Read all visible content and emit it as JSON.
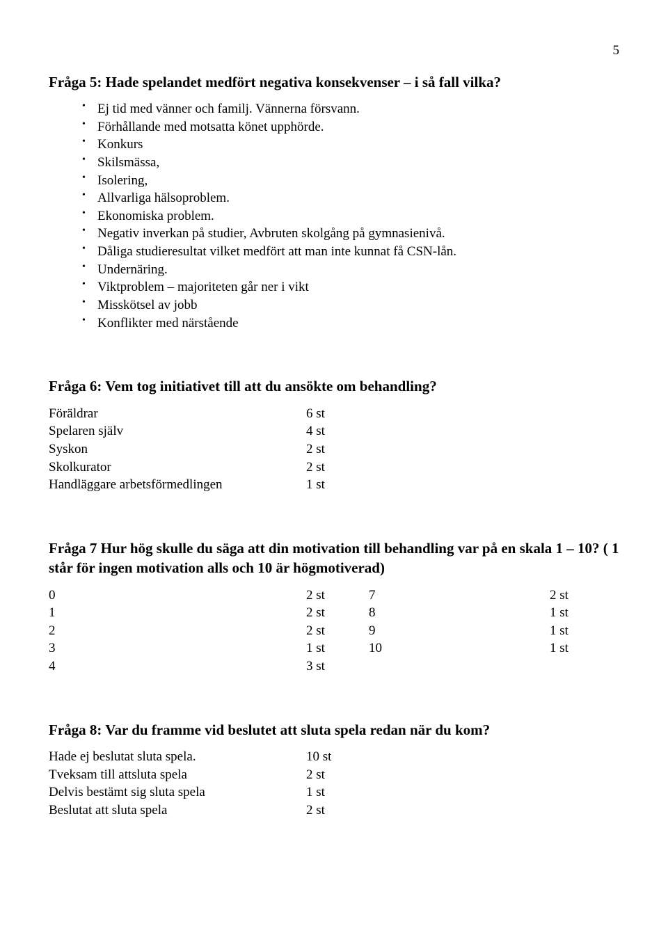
{
  "page_number": "5",
  "q5": {
    "heading": "Fråga 5: Hade spelandet medfört negativa konsekvenser – i så fall vilka?",
    "items": [
      "Ej tid med vänner och familj. Vännerna försvann.",
      "Förhållande med motsatta könet upphörde.",
      "Konkurs",
      "Skilsmässa,",
      "Isolering,",
      "Allvarliga hälsoproblem.",
      "Ekonomiska problem.",
      "Negativ inverkan på studier, Avbruten skolgång på gymnasienivå.",
      "Dåliga studieresultat vilket medfört att man inte kunnat få CSN-lån.",
      "Undernäring.",
      "Viktproblem – majoriteten går ner i vikt",
      "Misskötsel av jobb",
      "Konflikter med närstående"
    ]
  },
  "q6": {
    "heading": "Fråga 6: Vem tog initiativet till att du ansökte om behandling?",
    "rows": [
      {
        "label": "Föräldrar",
        "value": "6 st"
      },
      {
        "label": "Spelaren själv",
        "value": "4 st"
      },
      {
        "label": "Syskon",
        "value": "2 st"
      },
      {
        "label": "Skolkurator",
        "value": "2 st"
      },
      {
        "label": "Handläggare arbetsförmedlingen",
        "value": "1 st"
      }
    ]
  },
  "q7": {
    "heading": "Fråga 7 Hur hög skulle du säga att din motivation till behandling var på en skala 1 – 10? ( 1 står för ingen motivation alls och 10 är högmotiverad)",
    "rows": [
      {
        "a": "0",
        "b": "2 st",
        "c": "7",
        "d": "2 st"
      },
      {
        "a": "1",
        "b": "2 st",
        "c": "8",
        "d": "1 st"
      },
      {
        "a": "2",
        "b": "2 st",
        "c": "9",
        "d": "1 st"
      },
      {
        "a": "3",
        "b": "1 st",
        "c": "10",
        "d": "1 st"
      },
      {
        "a": "4",
        "b": "3 st",
        "c": "",
        "d": ""
      }
    ]
  },
  "q8": {
    "heading": "Fråga 8: Var du framme vid beslutet att sluta spela redan när du kom?",
    "rows": [
      {
        "label": "Hade ej beslutat sluta spela.",
        "value": "10 st"
      },
      {
        "label": "Tveksam till attsluta spela",
        "value": "2 st"
      },
      {
        "label": "Delvis bestämt sig sluta spela",
        "value": "1 st"
      },
      {
        "label": "Beslutat att sluta spela",
        "value": "2 st"
      }
    ]
  }
}
